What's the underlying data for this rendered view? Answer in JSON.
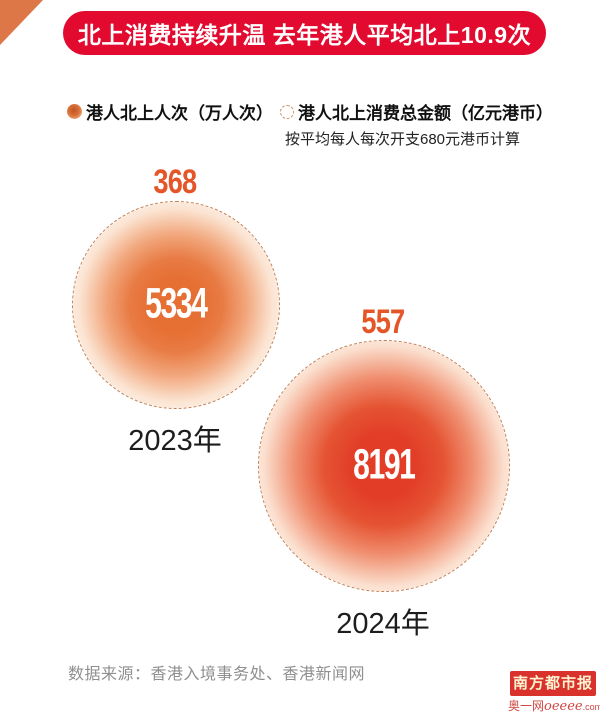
{
  "header": {
    "title": "北上消费持续升温 去年港人平均北上10.9次",
    "bg_color": "#e20a2e",
    "text_color": "#ffffff"
  },
  "legend": {
    "items": [
      {
        "icon": "filled-gradient-dot-icon",
        "label": "港人北上人次（万人次）"
      },
      {
        "icon": "dashed-circle-icon",
        "label": "港人北上消费总金额（亿元港币）"
      }
    ],
    "note": "按平均每人每次开支680元港币计算"
  },
  "bubbles": [
    {
      "year": "2023年",
      "visits": "5334",
      "amount": "368"
    },
    {
      "year": "2024年",
      "visits": "8191",
      "amount": "557"
    }
  ],
  "footer": {
    "source": "数据来源：香港入境事务处、香港新闻网"
  },
  "logo": {
    "masthead": "南方都市报",
    "site_prefix": "奥一网",
    "site_brand": "oeeee",
    "site_suffix": ".com"
  },
  "colors": {
    "banner_red": "#e20a2e",
    "corner_triangle": "#dd7747",
    "bubble_2023_core": "#e66f33",
    "bubble_2024_core": "#e23d27",
    "amount_number": "#e45528",
    "dashed_outline": "#c28156",
    "source_gray": "#8f8f8f",
    "logo_red": "#d9312b"
  },
  "chart_data": {
    "type": "scatter",
    "subtype": "proportional-bubble",
    "title": "北上消费持续升温 去年港人平均北上10.9次",
    "categories": [
      "2023年",
      "2024年"
    ],
    "series": [
      {
        "name": "港人北上人次（万人次）",
        "values": [
          5334,
          8191
        ]
      },
      {
        "name": "港人北上消费总金额（亿元港币）",
        "values": [
          368,
          557
        ]
      }
    ],
    "annotations": [
      "按平均每人每次开支680元港币计算"
    ],
    "source": "数据来源：香港入境事务处、香港新闻网",
    "legend_position": "top",
    "notes": "Bubble area proportional to 港人北上人次; 金额 value printed above each dashed circle, 人次 value printed inside gradient bubble"
  }
}
